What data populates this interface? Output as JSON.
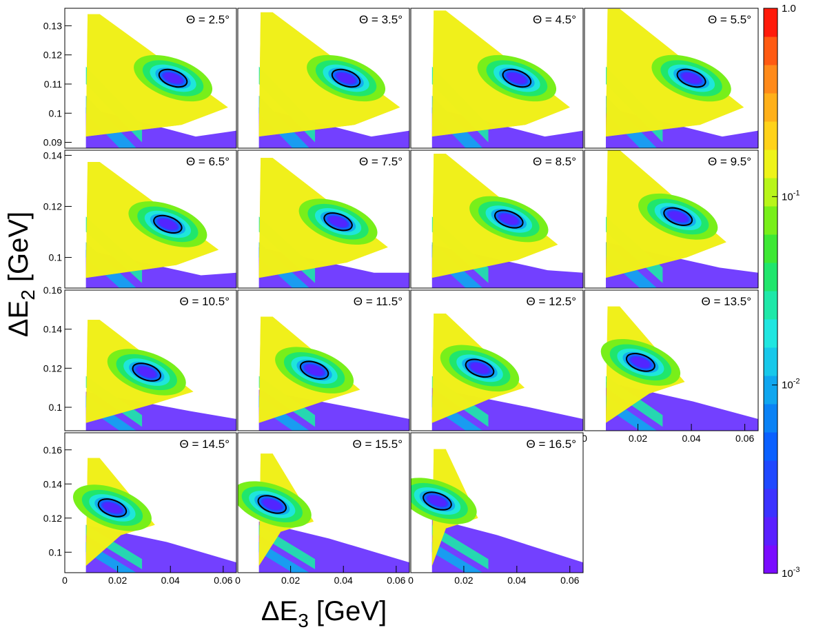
{
  "figure": {
    "ylabel_main": "ΔE",
    "ylabel_sub": "2",
    "ylabel_unit": " [GeV]",
    "xlabel_main": "ΔE",
    "xlabel_sub": "3",
    "xlabel_unit": " [GeV]"
  },
  "colorbar": {
    "scale": "log",
    "range": [
      0.001,
      1.0
    ],
    "tick_labels": [
      {
        "base": "1.0",
        "exp": "",
        "value": 1.0
      },
      {
        "base": "10",
        "exp": "-1",
        "value": 0.1
      },
      {
        "base": "10",
        "exp": "-2",
        "value": 0.01
      },
      {
        "base": "10",
        "exp": "-3",
        "value": 0.001
      }
    ],
    "palette": [
      "#7a0bff",
      "#5a1fff",
      "#3b32ff",
      "#1f48ff",
      "#0a60ff",
      "#0a82f5",
      "#10a6ef",
      "#18c8ea",
      "#20e6e0",
      "#1ee8a8",
      "#20e66c",
      "#3ee834",
      "#78ef1a",
      "#b8f51a",
      "#eef31a",
      "#ffd21a",
      "#ffb01a",
      "#ff8a1a",
      "#ff5a12",
      "#ff1a0a"
    ]
  },
  "chart_data": [
    {
      "type": "heatmap",
      "panel_label": "Θ = 2.5°",
      "peak": [
        0.041,
        0.112
      ],
      "ellipse": {
        "center": [
          0.041,
          0.112
        ],
        "semi_axes_x": [
          0.008,
          0.003
        ],
        "tilt": "negative"
      },
      "xlim": [
        0,
        0.065
      ],
      "ylim": [
        0.088,
        0.136
      ],
      "y_ticks": [
        "0.09",
        "0.1",
        "0.11",
        "0.12",
        "0.13"
      ],
      "x_ticks": []
    },
    {
      "type": "heatmap",
      "panel_label": "Θ = 3.5°",
      "peak": [
        0.041,
        0.112
      ],
      "ellipse": {
        "center": [
          0.041,
          0.112
        ]
      },
      "xlim": [
        0,
        0.065
      ],
      "ylim": [
        0.088,
        0.136
      ],
      "y_ticks": [],
      "x_ticks": []
    },
    {
      "type": "heatmap",
      "panel_label": "Θ = 4.5°",
      "peak": [
        0.04,
        0.112
      ],
      "ellipse": {
        "center": [
          0.04,
          0.112
        ]
      },
      "xlim": [
        0,
        0.065
      ],
      "ylim": [
        0.088,
        0.136
      ],
      "y_ticks": [],
      "x_ticks": []
    },
    {
      "type": "heatmap",
      "panel_label": "Θ = 5.5°",
      "peak": [
        0.04,
        0.112
      ],
      "ellipse": {
        "center": [
          0.04,
          0.112
        ]
      },
      "xlim": [
        0,
        0.065
      ],
      "ylim": [
        0.088,
        0.136
      ],
      "y_ticks": [],
      "x_ticks": []
    },
    {
      "type": "heatmap",
      "panel_label": "Θ = 6.5°",
      "peak": [
        0.039,
        0.113
      ],
      "ellipse": {
        "center": [
          0.039,
          0.113
        ]
      },
      "xlim": [
        0,
        0.065
      ],
      "ylim": [
        0.088,
        0.142
      ],
      "y_ticks": [
        "0.1",
        "0.12",
        "0.14"
      ],
      "x_ticks": []
    },
    {
      "type": "heatmap",
      "panel_label": "Θ = 7.5°",
      "peak": [
        0.038,
        0.114
      ],
      "ellipse": {
        "center": [
          0.038,
          0.114
        ]
      },
      "xlim": [
        0,
        0.065
      ],
      "ylim": [
        0.088,
        0.142
      ],
      "y_ticks": [],
      "x_ticks": []
    },
    {
      "type": "heatmap",
      "panel_label": "Θ = 8.5°",
      "peak": [
        0.037,
        0.115
      ],
      "ellipse": {
        "center": [
          0.037,
          0.115
        ]
      },
      "xlim": [
        0,
        0.065
      ],
      "ylim": [
        0.088,
        0.142
      ],
      "y_ticks": [],
      "x_ticks": []
    },
    {
      "type": "heatmap",
      "panel_label": "Θ = 9.5°",
      "peak": [
        0.035,
        0.116
      ],
      "ellipse": {
        "center": [
          0.035,
          0.116
        ]
      },
      "xlim": [
        0,
        0.065
      ],
      "ylim": [
        0.088,
        0.142
      ],
      "y_ticks": [],
      "x_ticks": []
    },
    {
      "type": "heatmap",
      "panel_label": "Θ = 10.5°",
      "peak": [
        0.031,
        0.118
      ],
      "ellipse": {
        "center": [
          0.031,
          0.118
        ]
      },
      "xlim": [
        0,
        0.065
      ],
      "ylim": [
        0.088,
        0.16
      ],
      "y_ticks": [
        "0.1",
        "0.12",
        "0.14",
        "0.16"
      ],
      "x_ticks": []
    },
    {
      "type": "heatmap",
      "panel_label": "Θ = 11.5°",
      "peak": [
        0.029,
        0.119
      ],
      "ellipse": {
        "center": [
          0.029,
          0.119
        ]
      },
      "xlim": [
        0,
        0.065
      ],
      "ylim": [
        0.088,
        0.16
      ],
      "y_ticks": [],
      "x_ticks": []
    },
    {
      "type": "heatmap",
      "panel_label": "Θ = 12.5°",
      "peak": [
        0.026,
        0.12
      ],
      "ellipse": {
        "center": [
          0.026,
          0.12
        ]
      },
      "xlim": [
        0,
        0.065
      ],
      "ylim": [
        0.088,
        0.16
      ],
      "y_ticks": [],
      "x_ticks": []
    },
    {
      "type": "heatmap",
      "panel_label": "Θ = 13.5°",
      "peak": [
        0.021,
        0.123
      ],
      "ellipse": {
        "center": [
          0.021,
          0.123
        ]
      },
      "xlim": [
        0,
        0.065
      ],
      "ylim": [
        0.088,
        0.16
      ],
      "y_ticks": [],
      "x_ticks": [
        "0",
        "0.02",
        "0.04",
        "0.06"
      ]
    },
    {
      "type": "heatmap",
      "panel_label": "Θ = 14.5°",
      "peak": [
        0.018,
        0.126
      ],
      "ellipse": {
        "center": [
          0.018,
          0.126
        ]
      },
      "xlim": [
        0,
        0.065
      ],
      "ylim": [
        0.088,
        0.17
      ],
      "y_ticks": [
        "0.1",
        "0.12",
        "0.14",
        "0.16"
      ],
      "x_ticks": [
        "0",
        "0.02",
        "0.04",
        "0.06"
      ]
    },
    {
      "type": "heatmap",
      "panel_label": "Θ = 15.5°",
      "peak": [
        0.013,
        0.128
      ],
      "ellipse": {
        "center": [
          0.013,
          0.128
        ]
      },
      "xlim": [
        0,
        0.065
      ],
      "ylim": [
        0.088,
        0.17
      ],
      "y_ticks": [],
      "x_ticks": [
        "0",
        "0.02",
        "0.04",
        "0.06"
      ]
    },
    {
      "type": "heatmap",
      "panel_label": "Θ = 16.5°",
      "peak": [
        0.01,
        0.13
      ],
      "ellipse": {
        "center": [
          0.01,
          0.13
        ]
      },
      "xlim": [
        0,
        0.065
      ],
      "ylim": [
        0.088,
        0.17
      ],
      "y_ticks": [],
      "x_ticks": [
        "0",
        "0.02",
        "0.04",
        "0.06"
      ]
    }
  ]
}
